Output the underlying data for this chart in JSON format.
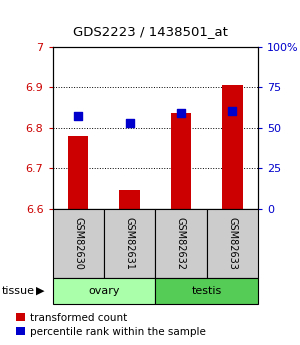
{
  "title": "GDS2223 / 1438501_at",
  "samples": [
    "GSM82630",
    "GSM82631",
    "GSM82632",
    "GSM82633"
  ],
  "transformed_count": [
    6.78,
    6.645,
    6.835,
    6.905
  ],
  "percentile_rank": [
    57,
    53,
    59,
    60
  ],
  "bar_color": "#cc0000",
  "dot_color": "#0000cc",
  "ylim_left": [
    6.6,
    7.0
  ],
  "ylim_right": [
    0,
    100
  ],
  "yticks_left": [
    6.6,
    6.7,
    6.8,
    6.9,
    7.0
  ],
  "ytick_labels_left": [
    "6.6",
    "6.7",
    "6.8",
    "6.9",
    "7"
  ],
  "yticks_right": [
    0,
    25,
    50,
    75,
    100
  ],
  "ytick_labels_right": [
    "0",
    "25",
    "50",
    "75",
    "100%"
  ],
  "gridlines": [
    6.7,
    6.8,
    6.9
  ],
  "bar_width": 0.4,
  "dot_size": 35,
  "legend_items": [
    "transformed count",
    "percentile rank within the sample"
  ],
  "bar_color_left_axis": "#cc0000",
  "dot_color_right_axis": "#0000cc",
  "bar_bottom": 6.6,
  "sample_box_color": "#cccccc",
  "ovary_color": "#aaffaa",
  "testis_color": "#55cc55",
  "tissue_border_color": "#000000"
}
